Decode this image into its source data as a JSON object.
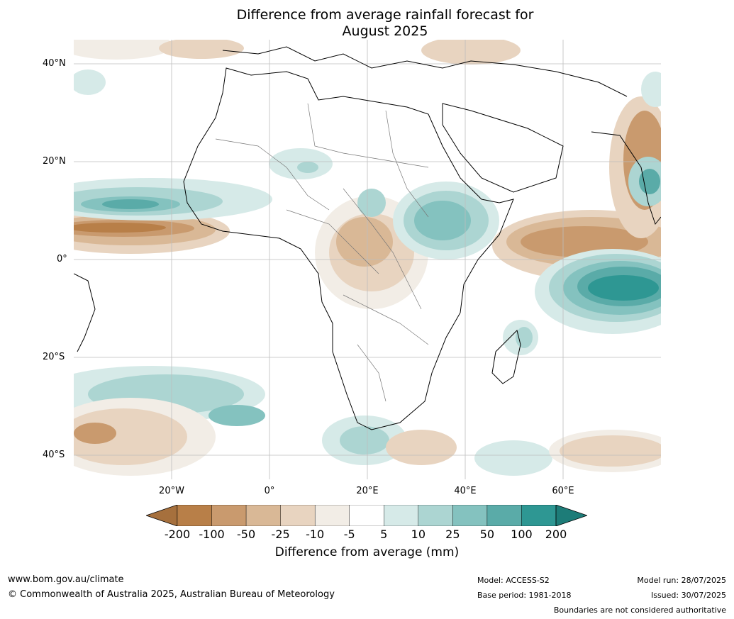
{
  "title_line1": "Difference from average rainfall forecast for",
  "title_line2": "August 2025",
  "lat_labels": [
    "40°N",
    "20°N",
    "0°",
    "20°S",
    "40°S"
  ],
  "lon_labels": [
    "20°W",
    "0°",
    "20°E",
    "40°E",
    "60°E"
  ],
  "colorbar": {
    "title": "Difference from average (mm)",
    "ticks": [
      "-200",
      "-100",
      "-50",
      "-25",
      "-10",
      "-5",
      "5",
      "10",
      "25",
      "50",
      "100",
      "200"
    ],
    "colors": [
      "#a6703d",
      "#b87f48",
      "#c99a6e",
      "#d9b896",
      "#e8d4c0",
      "#f2ede6",
      "#ffffff",
      "#d6eae8",
      "#acd5d2",
      "#84c2bf",
      "#5aaba8",
      "#2e9793",
      "#1d7c78"
    ]
  },
  "footer": {
    "website": "www.bom.gov.au/climate",
    "copyright": "© Commonwealth of Australia 2025, Australian Bureau of Meteorology",
    "model": "Model: ACCESS-S2",
    "base_period": "Base period: 1981-2018",
    "model_run": "Model run: 28/07/2025",
    "issued": "Issued: 30/07/2025",
    "disclaimer": "Boundaries are not considered authoritative"
  }
}
